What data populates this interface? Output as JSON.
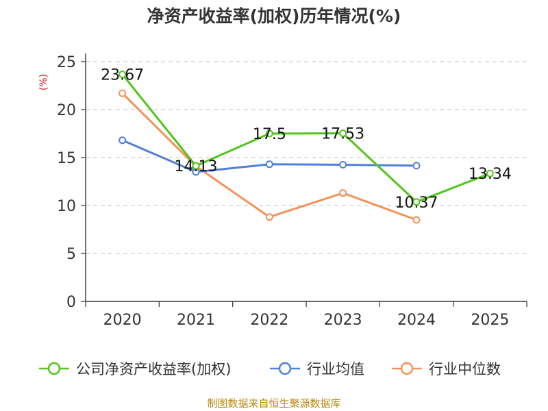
{
  "chart_data": {
    "type": "line",
    "title": "净资产收益率(加权)历年情况(%)",
    "ylabel": "(%)",
    "xlabel": "",
    "categories": [
      "2020",
      "2021",
      "2022",
      "2023",
      "2024",
      "2025"
    ],
    "ylim": [
      0,
      25
    ],
    "yticks": [
      0,
      5,
      10,
      15,
      20,
      25
    ],
    "grid": true,
    "legend_position": "bottom",
    "series": [
      {
        "name": "公司净资产收益率(加权)",
        "color": "#52c41a",
        "values": [
          23.67,
          14.13,
          17.5,
          17.53,
          10.37,
          13.34
        ],
        "labels": [
          "23.67",
          "14.13",
          "17.5",
          "17.53",
          "10.37",
          "13.34"
        ]
      },
      {
        "name": "行业均值",
        "color": "#4f7fd8",
        "values": [
          16.8,
          13.5,
          14.3,
          14.25,
          14.15,
          null
        ]
      },
      {
        "name": "行业中位数",
        "color": "#f5915a",
        "values": [
          21.7,
          14.1,
          8.8,
          11.3,
          8.5,
          null
        ]
      }
    ]
  },
  "source_note": "制图数据来自恒生聚源数据库"
}
